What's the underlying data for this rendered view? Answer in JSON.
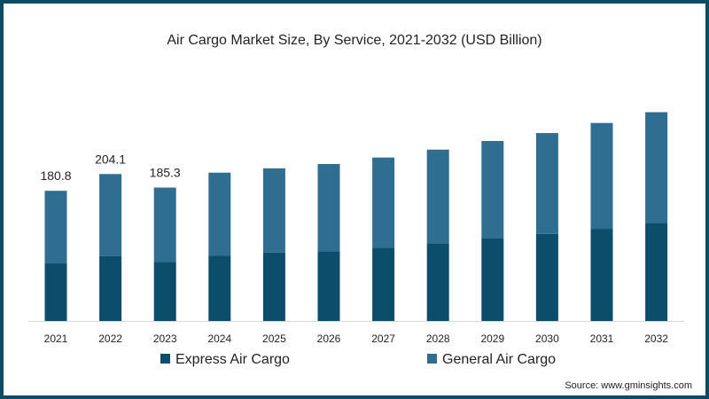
{
  "chart_data": {
    "type": "bar",
    "stacked": true,
    "title": "Air Cargo Market Size, By Service, 2021-2032 (USD Billion)",
    "xlabel": "",
    "ylabel": "",
    "categories": [
      "2021",
      "2022",
      "2023",
      "2024",
      "2025",
      "2026",
      "2027",
      "2028",
      "2029",
      "2030",
      "2031",
      "2032"
    ],
    "series": [
      {
        "name": "Express Air Cargo",
        "color": "#0b4d6b",
        "values": [
          80,
          90,
          82,
          91,
          95,
          97,
          102,
          108,
          115,
          121,
          128,
          136
        ]
      },
      {
        "name": "General Air Cargo",
        "color": "#2f6e91",
        "values": [
          100.8,
          114.1,
          103.3,
          115,
          117,
          121,
          125,
          130,
          135,
          140,
          147,
          154
        ]
      }
    ],
    "data_labels": {
      "2021": "180.8",
      "2022": "204.1",
      "2023": "185.3"
    },
    "ylim": [
      0,
      330
    ],
    "grid": false,
    "legend": "bottom"
  },
  "source": "Source: www.gminsights.com"
}
